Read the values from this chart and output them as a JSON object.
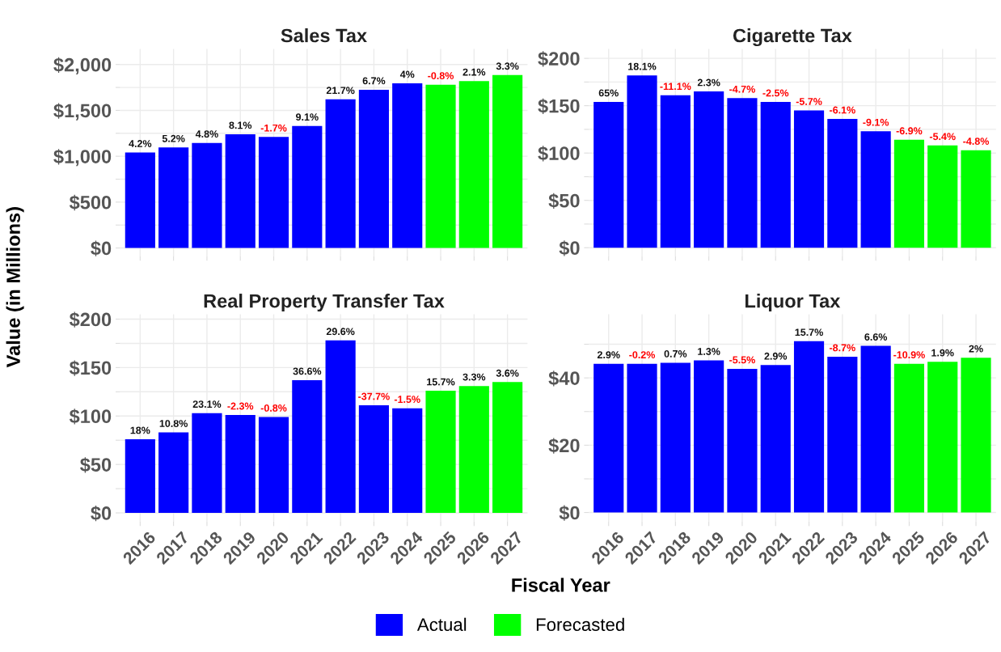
{
  "chart_data": [
    {
      "type": "bar",
      "title": "Sales Tax",
      "ylabel": "Value (in Millions)",
      "legend": "bottom",
      "grid": true,
      "tick_labels": "y",
      "categories": [
        "2016",
        "2017",
        "2018",
        "2019",
        "2020",
        "2021",
        "2022",
        "2023",
        "2024",
        "2025",
        "2026",
        "2027"
      ],
      "ylim": [
        -90,
        2170
      ],
      "yticks": [
        {
          "value": 0,
          "label": "$0"
        },
        {
          "value": 250,
          "label": null
        },
        {
          "value": 500,
          "label": "$500"
        },
        {
          "value": 750,
          "label": null
        },
        {
          "value": 1000,
          "label": "$1,000"
        },
        {
          "value": 1250,
          "label": null
        },
        {
          "value": 1500,
          "label": "$1,500"
        },
        {
          "value": 1750,
          "label": null
        },
        {
          "value": 2000,
          "label": "$2,000"
        }
      ],
      "series": [
        {
          "name": "Actual",
          "color": "#0000ff",
          "values": [
            1040,
            1095,
            1145,
            1240,
            1210,
            1330,
            1620,
            1725,
            1795,
            null,
            null,
            null
          ]
        },
        {
          "name": "Forecasted",
          "color": "#00ff00",
          "values": [
            null,
            null,
            null,
            null,
            null,
            null,
            null,
            null,
            null,
            1780,
            1820,
            1885
          ]
        }
      ],
      "annotations": [
        {
          "text": "4.2%",
          "x": "2016",
          "y": 1040
        },
        {
          "text": "5.2%",
          "x": "2017",
          "y": 1095
        },
        {
          "text": "4.8%",
          "x": "2018",
          "y": 1145
        },
        {
          "text": "8.1%",
          "x": "2019",
          "y": 1240
        },
        {
          "text": "-1.7%",
          "x": "2020",
          "y": 1210
        },
        {
          "text": "9.1%",
          "x": "2021",
          "y": 1330
        },
        {
          "text": "21.7%",
          "x": "2022",
          "y": 1620
        },
        {
          "text": "6.7%",
          "x": "2023",
          "y": 1725
        },
        {
          "text": "4%",
          "x": "2024",
          "y": 1795
        },
        {
          "text": "-0.8%",
          "x": "2025",
          "y": 1780
        },
        {
          "text": "2.1%",
          "x": "2026",
          "y": 1820
        },
        {
          "text": "3.3%",
          "x": "2027",
          "y": 1885
        }
      ]
    },
    {
      "type": "bar",
      "title": "Cigarette Tax",
      "grid": true,
      "tick_labels": "y",
      "categories": [
        "2016",
        "2017",
        "2018",
        "2019",
        "2020",
        "2021",
        "2022",
        "2023",
        "2024",
        "2025",
        "2026",
        "2027"
      ],
      "ylim": [
        -9,
        210
      ],
      "yticks": [
        {
          "value": 0,
          "label": "$0"
        },
        {
          "value": 25,
          "label": null
        },
        {
          "value": 50,
          "label": "$50"
        },
        {
          "value": 75,
          "label": null
        },
        {
          "value": 100,
          "label": "$100"
        },
        {
          "value": 125,
          "label": null
        },
        {
          "value": 150,
          "label": "$150"
        },
        {
          "value": 175,
          "label": null
        },
        {
          "value": 200,
          "label": "$200"
        }
      ],
      "series": [
        {
          "color": "#0000ff",
          "values": [
            154,
            182,
            161,
            165,
            158,
            154,
            145,
            136,
            123,
            null,
            null,
            null
          ]
        },
        {
          "color": "#00ff00",
          "values": [
            null,
            null,
            null,
            null,
            null,
            null,
            null,
            null,
            null,
            114,
            108,
            103
          ]
        }
      ],
      "annotations": [
        {
          "text": "65%",
          "x": "2016",
          "y": 154
        },
        {
          "text": "18.1%",
          "x": "2017",
          "y": 182
        },
        {
          "text": "-11.1%",
          "x": "2018",
          "y": 161
        },
        {
          "text": "2.3%",
          "x": "2019",
          "y": 165
        },
        {
          "text": "-4.7%",
          "x": "2020",
          "y": 158
        },
        {
          "text": "-2.5%",
          "x": "2021",
          "y": 154
        },
        {
          "text": "-5.7%",
          "x": "2022",
          "y": 145
        },
        {
          "text": "-6.1%",
          "x": "2023",
          "y": 136
        },
        {
          "text": "-9.1%",
          "x": "2024",
          "y": 123
        },
        {
          "text": "-6.9%",
          "x": "2025",
          "y": 114
        },
        {
          "text": "-5.4%",
          "x": "2026",
          "y": 108
        },
        {
          "text": "-4.8%",
          "x": "2027",
          "y": 103
        }
      ]
    },
    {
      "type": "bar",
      "title": "Real Property Transfer Tax",
      "xlabel": "Fiscal Year",
      "grid": true,
      "categories": [
        "2016",
        "2017",
        "2018",
        "2019",
        "2020",
        "2021",
        "2022",
        "2023",
        "2024",
        "2025",
        "2026",
        "2027"
      ],
      "ylim": [
        -9,
        205
      ],
      "yticks": [
        {
          "value": 0,
          "label": "$0"
        },
        {
          "value": 25,
          "label": null
        },
        {
          "value": 50,
          "label": "$50"
        },
        {
          "value": 75,
          "label": null
        },
        {
          "value": 100,
          "label": "$100"
        },
        {
          "value": 125,
          "label": null
        },
        {
          "value": 150,
          "label": "$150"
        },
        {
          "value": 175,
          "label": null
        },
        {
          "value": 200,
          "label": "$200"
        }
      ],
      "series": [
        {
          "color": "#0000ff",
          "values": [
            76,
            83,
            103,
            101,
            99,
            137,
            178,
            111,
            108,
            null,
            null,
            null
          ]
        },
        {
          "color": "#00ff00",
          "values": [
            null,
            null,
            null,
            null,
            null,
            null,
            null,
            null,
            null,
            126,
            131,
            135
          ]
        }
      ],
      "annotations": [
        {
          "text": "18%",
          "x": "2016",
          "y": 76
        },
        {
          "text": "10.8%",
          "x": "2017",
          "y": 83
        },
        {
          "text": "23.1%",
          "x": "2018",
          "y": 103
        },
        {
          "text": "-2.3%",
          "x": "2019",
          "y": 101
        },
        {
          "text": "-0.8%",
          "x": "2020",
          "y": 99
        },
        {
          "text": "36.6%",
          "x": "2021",
          "y": 137
        },
        {
          "text": "29.6%",
          "x": "2022",
          "y": 178
        },
        {
          "text": "-37.7%",
          "x": "2023",
          "y": 111
        },
        {
          "text": "-1.5%",
          "x": "2024",
          "y": 108
        },
        {
          "text": "15.7%",
          "x": "2025",
          "y": 126
        },
        {
          "text": "3.3%",
          "x": "2026",
          "y": 131
        },
        {
          "text": "3.6%",
          "x": "2027",
          "y": 135
        }
      ]
    },
    {
      "type": "bar",
      "title": "Liquor Tax",
      "grid": true,
      "categories": [
        "2016",
        "2017",
        "2018",
        "2019",
        "2020",
        "2021",
        "2022",
        "2023",
        "2024",
        "2025",
        "2026",
        "2027"
      ],
      "ylim": [
        -2.7,
        58.9
      ],
      "yticks": [
        {
          "value": 0,
          "label": "$0"
        },
        {
          "value": 10,
          "label": null
        },
        {
          "value": 20,
          "label": "$20"
        },
        {
          "value": 30,
          "label": null
        },
        {
          "value": 40,
          "label": "$40"
        },
        {
          "value": 50,
          "label": null
        }
      ],
      "series": [
        {
          "color": "#0000ff",
          "values": [
            44.2,
            44.2,
            44.5,
            45.2,
            42.7,
            43.8,
            50.9,
            46.3,
            49.5,
            null,
            null,
            null
          ]
        },
        {
          "color": "#00ff00",
          "values": [
            null,
            null,
            null,
            null,
            null,
            null,
            null,
            null,
            null,
            44.2,
            44.8,
            46.0
          ]
        }
      ],
      "annotations": [
        {
          "text": "2.9%",
          "x": "2016",
          "y": 44.2
        },
        {
          "text": "-0.2%",
          "x": "2017",
          "y": 44.2
        },
        {
          "text": "0.7%",
          "x": "2018",
          "y": 44.5
        },
        {
          "text": "1.3%",
          "x": "2019",
          "y": 45.2
        },
        {
          "text": "-5.5%",
          "x": "2020",
          "y": 42.7
        },
        {
          "text": "2.9%",
          "x": "2021",
          "y": 43.8
        },
        {
          "text": "15.7%",
          "x": "2022",
          "y": 50.9
        },
        {
          "text": "-8.7%",
          "x": "2023",
          "y": 46.3
        },
        {
          "text": "6.6%",
          "x": "2024",
          "y": 49.5
        },
        {
          "text": "-10.9%",
          "x": "2025",
          "y": 44.2
        },
        {
          "text": "1.9%",
          "x": "2026",
          "y": 44.8
        },
        {
          "text": "2%",
          "x": "2027",
          "y": 46.0
        }
      ]
    }
  ]
}
